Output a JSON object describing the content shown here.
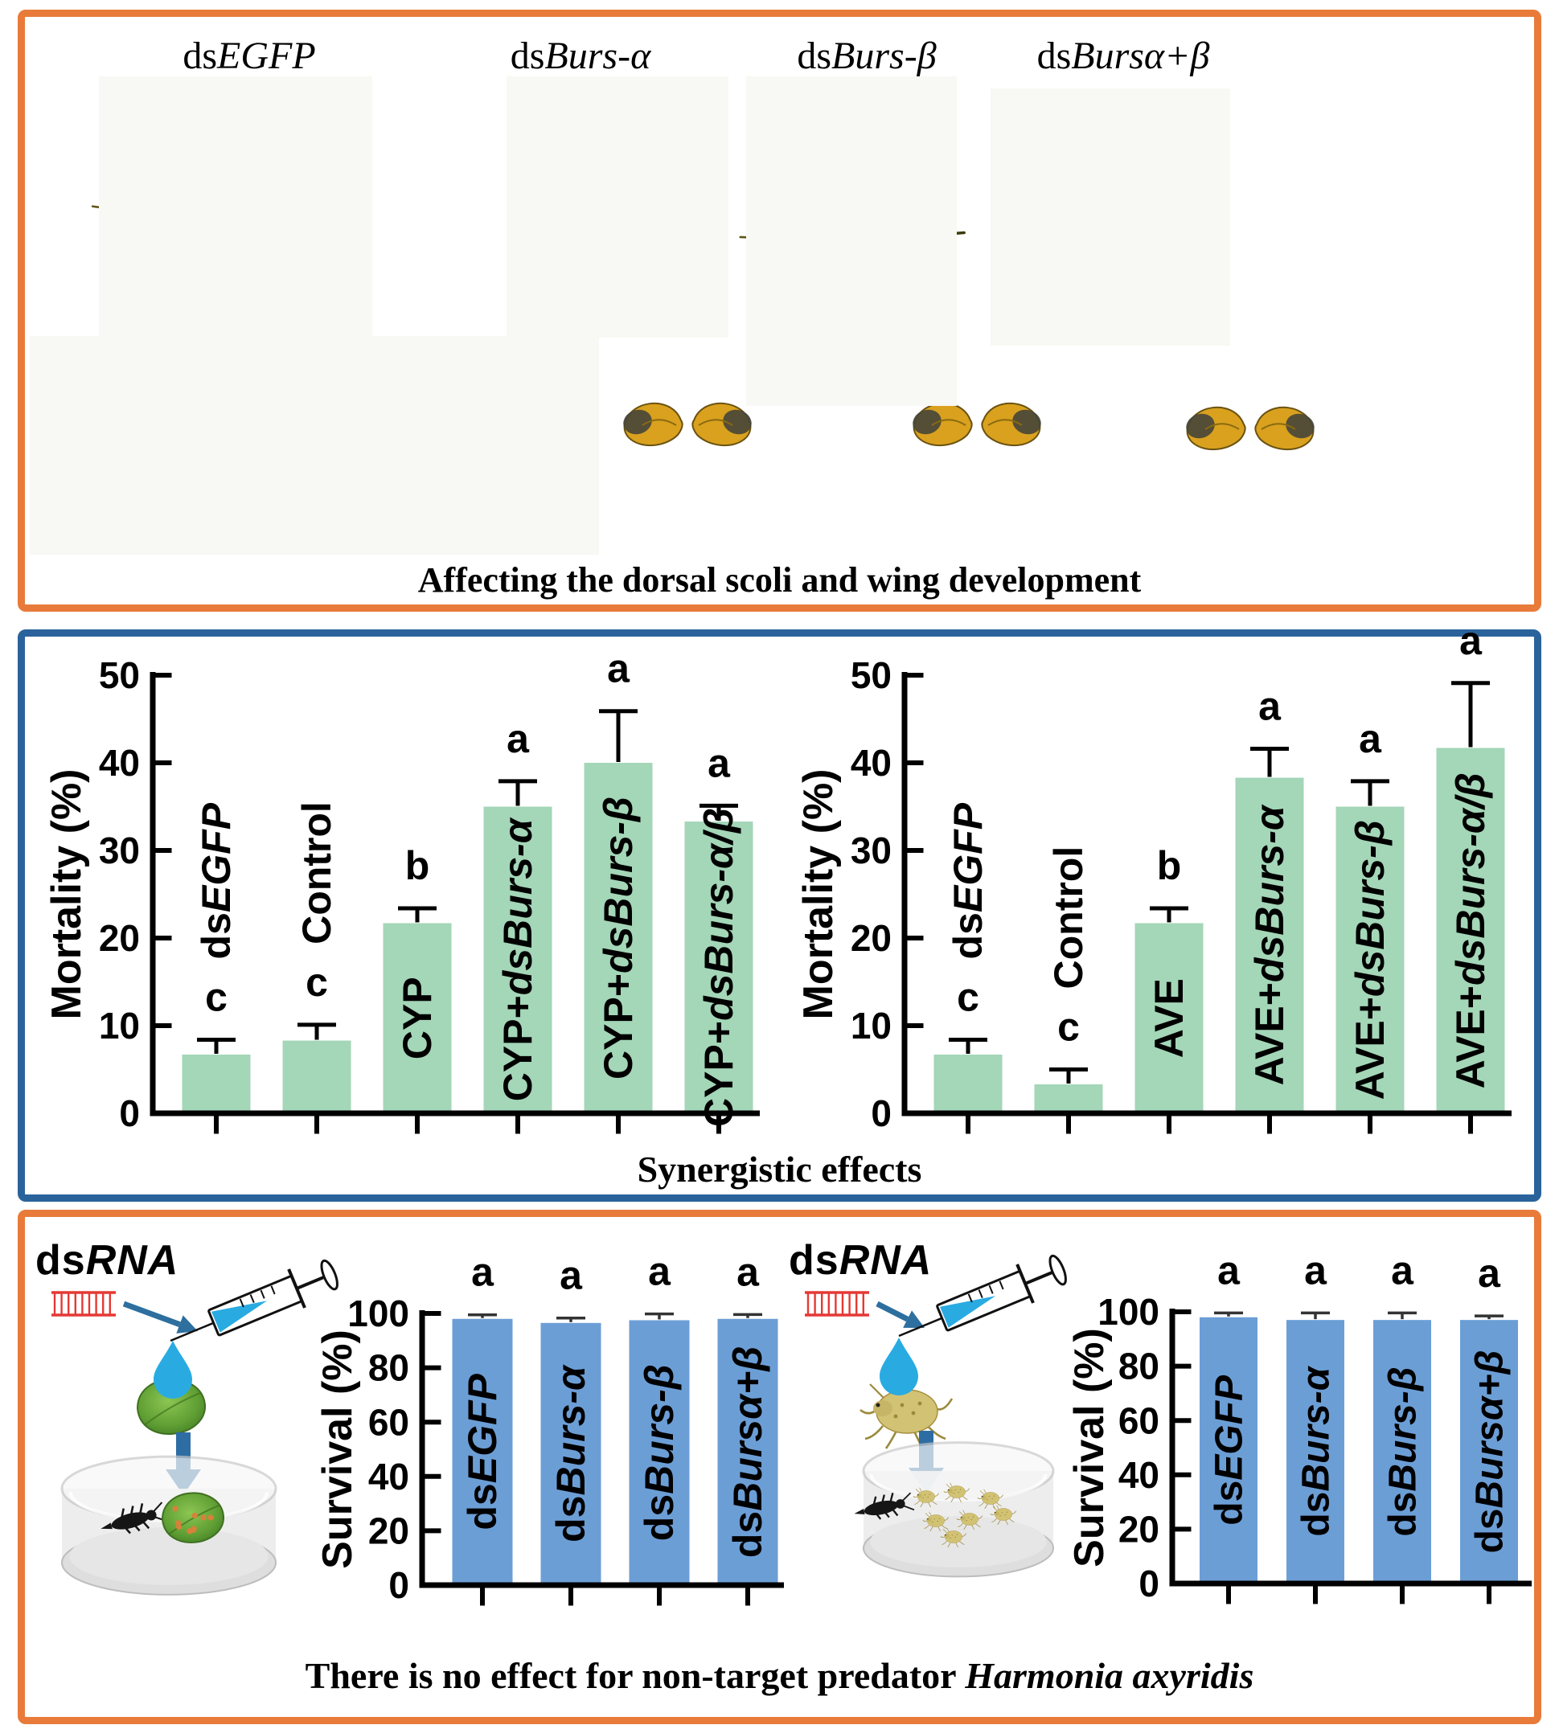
{
  "panel1": {
    "caption": "Affecting the dorsal scoli and wing development",
    "specimens": [
      {
        "label_parts": [
          {
            "t": "ds"
          },
          {
            "t": "EGFP",
            "i": true
          }
        ]
      },
      {
        "label_parts": [
          {
            "t": "ds"
          },
          {
            "t": "Burs-α",
            "i": true
          }
        ]
      },
      {
        "label_parts": [
          {
            "t": "ds"
          },
          {
            "t": "Burs-β",
            "i": true
          }
        ]
      },
      {
        "label_parts": [
          {
            "t": "ds"
          },
          {
            "t": "Bursα+β",
            "i": true
          }
        ]
      }
    ]
  },
  "panel2": {
    "caption": "Synergistic effects"
  },
  "panel3": {
    "caption_parts": [
      {
        "t": "There is no effect for non-target predator "
      },
      {
        "t": "Harmonia axyridis",
        "i": true
      }
    ],
    "scenes": [
      {
        "label_parts": [
          {
            "t": "ds"
          },
          {
            "t": "RNA",
            "i": true
          }
        ]
      },
      {
        "label_parts": [
          {
            "t": "ds"
          },
          {
            "t": "RNA",
            "i": true
          }
        ]
      }
    ]
  },
  "colors": {
    "orange_border": "#e87b3a",
    "blue_border": "#2a639c",
    "bar_green": "#a4d6b8",
    "bar_blue": "#6c9ed6",
    "arrow_blue": "#2d6f9e",
    "down_arrow_blue": "#2e6da4",
    "dsrna_red": "#e53935",
    "drop_blue": "#29abe2"
  },
  "chart_data": [
    {
      "type": "bar",
      "title": "",
      "xlabel": "",
      "ylabel": "Mortality (%)",
      "ylim": [
        0,
        50
      ],
      "yticks": [
        0,
        10,
        20,
        30,
        40,
        50
      ],
      "grid": false,
      "legend": "none",
      "bar_color": "#a4d6b8",
      "categories": [
        "dsEGFP",
        "Control",
        "CYP",
        "CYP+dsBurs-α",
        "CYP+dsBurs-β",
        "CYP+dsBurs-α/β"
      ],
      "category_parts": [
        [
          {
            "t": "ds"
          },
          {
            "t": "EGFP",
            "i": true
          }
        ],
        [
          {
            "t": "Control"
          }
        ],
        [
          {
            "t": "CYP"
          }
        ],
        [
          {
            "t": "CYP+"
          },
          {
            "t": "dsBurs-α",
            "i": true
          }
        ],
        [
          {
            "t": "CYP+"
          },
          {
            "t": "dsBurs-β",
            "i": true
          }
        ],
        [
          {
            "t": "CYP+"
          },
          {
            "t": "dsBurs-α/β",
            "i": true
          }
        ]
      ],
      "values": [
        6.7,
        8.3,
        21.7,
        35.0,
        40.0,
        33.3
      ],
      "errors_upper": [
        1.7,
        1.8,
        1.7,
        2.9,
        5.9,
        1.8
      ],
      "sig_letters": [
        "c",
        "c",
        "b",
        "a",
        "a",
        "a"
      ],
      "label_placement": [
        "above",
        "above",
        "inside",
        "inside",
        "inside",
        "inside"
      ]
    },
    {
      "type": "bar",
      "title": "",
      "xlabel": "",
      "ylabel": "Mortality (%)",
      "ylim": [
        0,
        50
      ],
      "yticks": [
        0,
        10,
        20,
        30,
        40,
        50
      ],
      "grid": false,
      "legend": "none",
      "bar_color": "#a4d6b8",
      "categories": [
        "dsEGFP",
        "Control",
        "AVE",
        "AVE+dsBurs-α",
        "AVE+dsBurs-β",
        "AVE+dsBurs-α/β"
      ],
      "category_parts": [
        [
          {
            "t": "ds"
          },
          {
            "t": "EGFP",
            "i": true
          }
        ],
        [
          {
            "t": "Control"
          }
        ],
        [
          {
            "t": "AVE"
          }
        ],
        [
          {
            "t": "AVE+"
          },
          {
            "t": "dsBurs-α",
            "i": true
          }
        ],
        [
          {
            "t": "AVE+"
          },
          {
            "t": "dsBurs-β",
            "i": true
          }
        ],
        [
          {
            "t": "AVE+"
          },
          {
            "t": "dsBurs-α/β",
            "i": true
          }
        ]
      ],
      "values": [
        6.7,
        3.3,
        21.7,
        38.3,
        35.0,
        41.7
      ],
      "errors_upper": [
        1.7,
        1.7,
        1.7,
        3.3,
        2.9,
        7.4
      ],
      "sig_letters": [
        "c",
        "c",
        "b",
        "a",
        "a",
        "a"
      ],
      "label_placement": [
        "above",
        "above",
        "inside",
        "inside",
        "inside",
        "inside"
      ]
    },
    {
      "type": "bar",
      "title": "",
      "xlabel": "",
      "ylabel": "Survival (%)",
      "ylim": [
        0,
        100
      ],
      "yticks": [
        0,
        20,
        40,
        60,
        80,
        100
      ],
      "grid": false,
      "legend": "none",
      "bar_color": "#6c9ed6",
      "categories": [
        "dsEGFP",
        "dsBurs-α",
        "dsBurs-β",
        "dsBursα+β"
      ],
      "category_parts": [
        [
          {
            "t": "ds"
          },
          {
            "t": "EGFP",
            "i": true
          }
        ],
        [
          {
            "t": "ds"
          },
          {
            "t": "Burs-α",
            "i": true
          }
        ],
        [
          {
            "t": "ds"
          },
          {
            "t": "Burs-β",
            "i": true
          }
        ],
        [
          {
            "t": "ds"
          },
          {
            "t": "Bursα+β",
            "i": true
          }
        ]
      ],
      "values": [
        98.0,
        96.5,
        97.5,
        98.0
      ],
      "errors_upper": [
        1.5,
        1.8,
        2.3,
        1.6
      ],
      "sig_letters": [
        "a",
        "a",
        "a",
        "a"
      ],
      "label_placement": [
        "inside",
        "inside",
        "inside",
        "inside"
      ]
    },
    {
      "type": "bar",
      "title": "",
      "xlabel": "",
      "ylabel": "Survival (%)",
      "ylim": [
        0,
        100
      ],
      "yticks": [
        0,
        20,
        40,
        60,
        80,
        100
      ],
      "grid": false,
      "legend": "none",
      "bar_color": "#6c9ed6",
      "categories": [
        "dsEGFP",
        "dsBurs-α",
        "dsBurs-β",
        "dsBursα+β"
      ],
      "category_parts": [
        [
          {
            "t": "ds"
          },
          {
            "t": "EGFP",
            "i": true
          }
        ],
        [
          {
            "t": "ds"
          },
          {
            "t": "Burs-α",
            "i": true
          }
        ],
        [
          {
            "t": "ds"
          },
          {
            "t": "Burs-β",
            "i": true
          }
        ],
        [
          {
            "t": "ds"
          },
          {
            "t": "Bursα+β",
            "i": true
          }
        ]
      ],
      "values": [
        98.0,
        97.0,
        97.0,
        97.0
      ],
      "errors_upper": [
        1.6,
        2.6,
        2.6,
        1.5
      ],
      "sig_letters": [
        "a",
        "a",
        "a",
        "a"
      ],
      "label_placement": [
        "inside",
        "inside",
        "inside",
        "inside"
      ]
    }
  ]
}
